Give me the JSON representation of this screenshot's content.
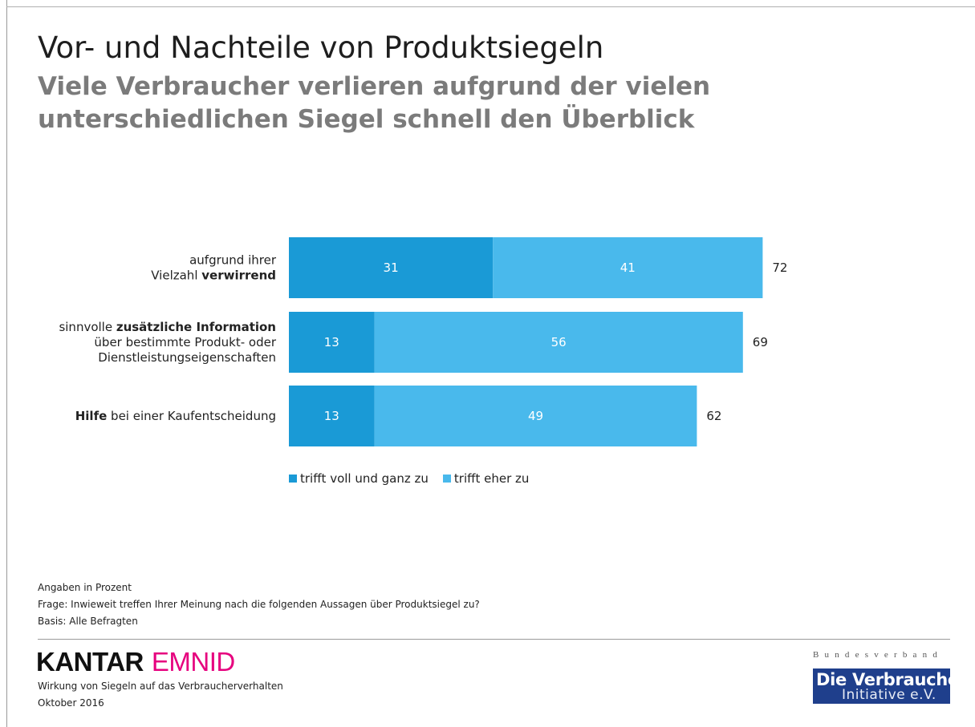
{
  "header": {
    "title": "Vor- und Nachteile von Produktsiegeln",
    "subtitle": "Viele Verbraucher verlieren aufgrund der vielen unterschiedlichen Siegel schnell den Überblick"
  },
  "chart_data": {
    "type": "bar",
    "orientation": "horizontal",
    "stacked": true,
    "categories": [
      [
        {
          "t": "aufgrund ihrer",
          "b": false
        },
        {
          "t": "Vielzahl ",
          "b": false,
          "nl": true
        },
        {
          "t": "verwirrend",
          "b": true
        }
      ],
      [
        {
          "t": "sinnvolle ",
          "b": false
        },
        {
          "t": "zusätzliche Information",
          "b": true
        },
        {
          "t": "über bestimmte Produkt- oder",
          "b": false,
          "nl": true
        },
        {
          "t": "Dienstleistungseigenschaften",
          "b": false,
          "nl": true
        }
      ],
      [
        {
          "t": "Hilfe",
          "b": true
        },
        {
          "t": " bei einer Kaufentscheidung",
          "b": false
        }
      ]
    ],
    "category_labels": [
      "aufgrund ihrer Vielzahl verwirrend",
      "sinnvolle zusätzliche Information über bestimmte Produkt- oder Dienstleistungseigenschaften",
      "Hilfe bei einer Kaufentscheidung"
    ],
    "series": [
      {
        "name": "trifft voll und ganz zu",
        "values": [
          31,
          13,
          13
        ],
        "color": "#1a9ad6"
      },
      {
        "name": "trifft eher zu",
        "values": [
          41,
          56,
          49
        ],
        "color": "#49b9ec"
      }
    ],
    "totals": [
      72,
      69,
      62
    ],
    "xlim": [
      0,
      72
    ],
    "grid": false,
    "legend": "bottom"
  },
  "legend": {
    "items": [
      {
        "label": "trifft voll und ganz zu",
        "color": "#1a9ad6"
      },
      {
        "label": "trifft eher zu",
        "color": "#49b9ec"
      }
    ]
  },
  "notes": {
    "unit": "Angaben in Prozent",
    "question": "Frage: Inwieweit treffen Ihrer Meinung nach die folgenden Aussagen über Produktsiegel zu?",
    "base": "Basis: Alle Befragten"
  },
  "footer": {
    "brand_kantar": "KANTAR",
    "brand_emnid": "EMNID",
    "study": "Wirkung von Siegeln auf das Verbraucherverhalten",
    "date": "Oktober 2016",
    "partner_top": "Bundesverband",
    "partner_line1": "Die Verbraucher",
    "partner_line2": "Initiative e.V."
  }
}
